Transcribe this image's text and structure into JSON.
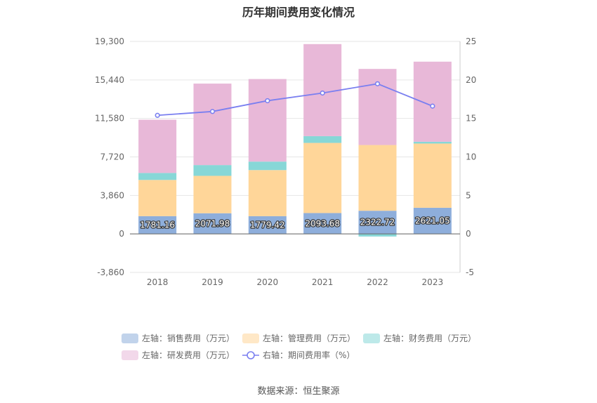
{
  "chart_title": "历年期间费用变化情况",
  "source_text": "数据来源：恒生聚源",
  "chart_data": {
    "type": "bar",
    "stacked": true,
    "title": "历年期间费用变化情况",
    "categories": [
      "2018",
      "2019",
      "2020",
      "2021",
      "2022",
      "2023"
    ],
    "left_axis": {
      "ticks": [
        "19,300",
        "15,440",
        "11,580",
        "7,720",
        "3,860",
        "0",
        "-3,860"
      ],
      "range": [
        -3860,
        19300
      ]
    },
    "right_axis": {
      "ticks": [
        "25",
        "20",
        "15",
        "10",
        "5",
        "0",
        "-5"
      ],
      "range": [
        -5,
        25
      ]
    },
    "grid": true,
    "legend_position": "bottom",
    "series": [
      {
        "name": "左轴：销售费用（万元）",
        "axis": "left",
        "color": "#8eaedb",
        "values": [
          1781.16,
          2071.98,
          1779.42,
          2093.68,
          2322.72,
          2621.05
        ],
        "labels": [
          "1781.16",
          "2071.98",
          "1779.42",
          "2093.68",
          "2322.72",
          "2621.05"
        ]
      },
      {
        "name": "左轴：管理费用（万元）",
        "axis": "left",
        "color": "#ffd699",
        "values": [
          3630,
          3750,
          4620,
          7030,
          6590,
          6440
        ]
      },
      {
        "name": "左轴：财务费用（万元）",
        "axis": "left",
        "color": "#87d7d7",
        "values": [
          700,
          1080,
          850,
          680,
          -260,
          180
        ]
      },
      {
        "name": "左轴：研发费用（万元）",
        "axis": "left",
        "color": "#e8b8d8",
        "values": [
          5340,
          8170,
          8280,
          9230,
          7630,
          8030
        ]
      },
      {
        "name": "右轴：期间费用率（%）",
        "axis": "right",
        "type": "line",
        "color": "#7a7ff0",
        "values": [
          15.4,
          15.9,
          17.3,
          18.3,
          19.5,
          16.6
        ]
      }
    ]
  }
}
